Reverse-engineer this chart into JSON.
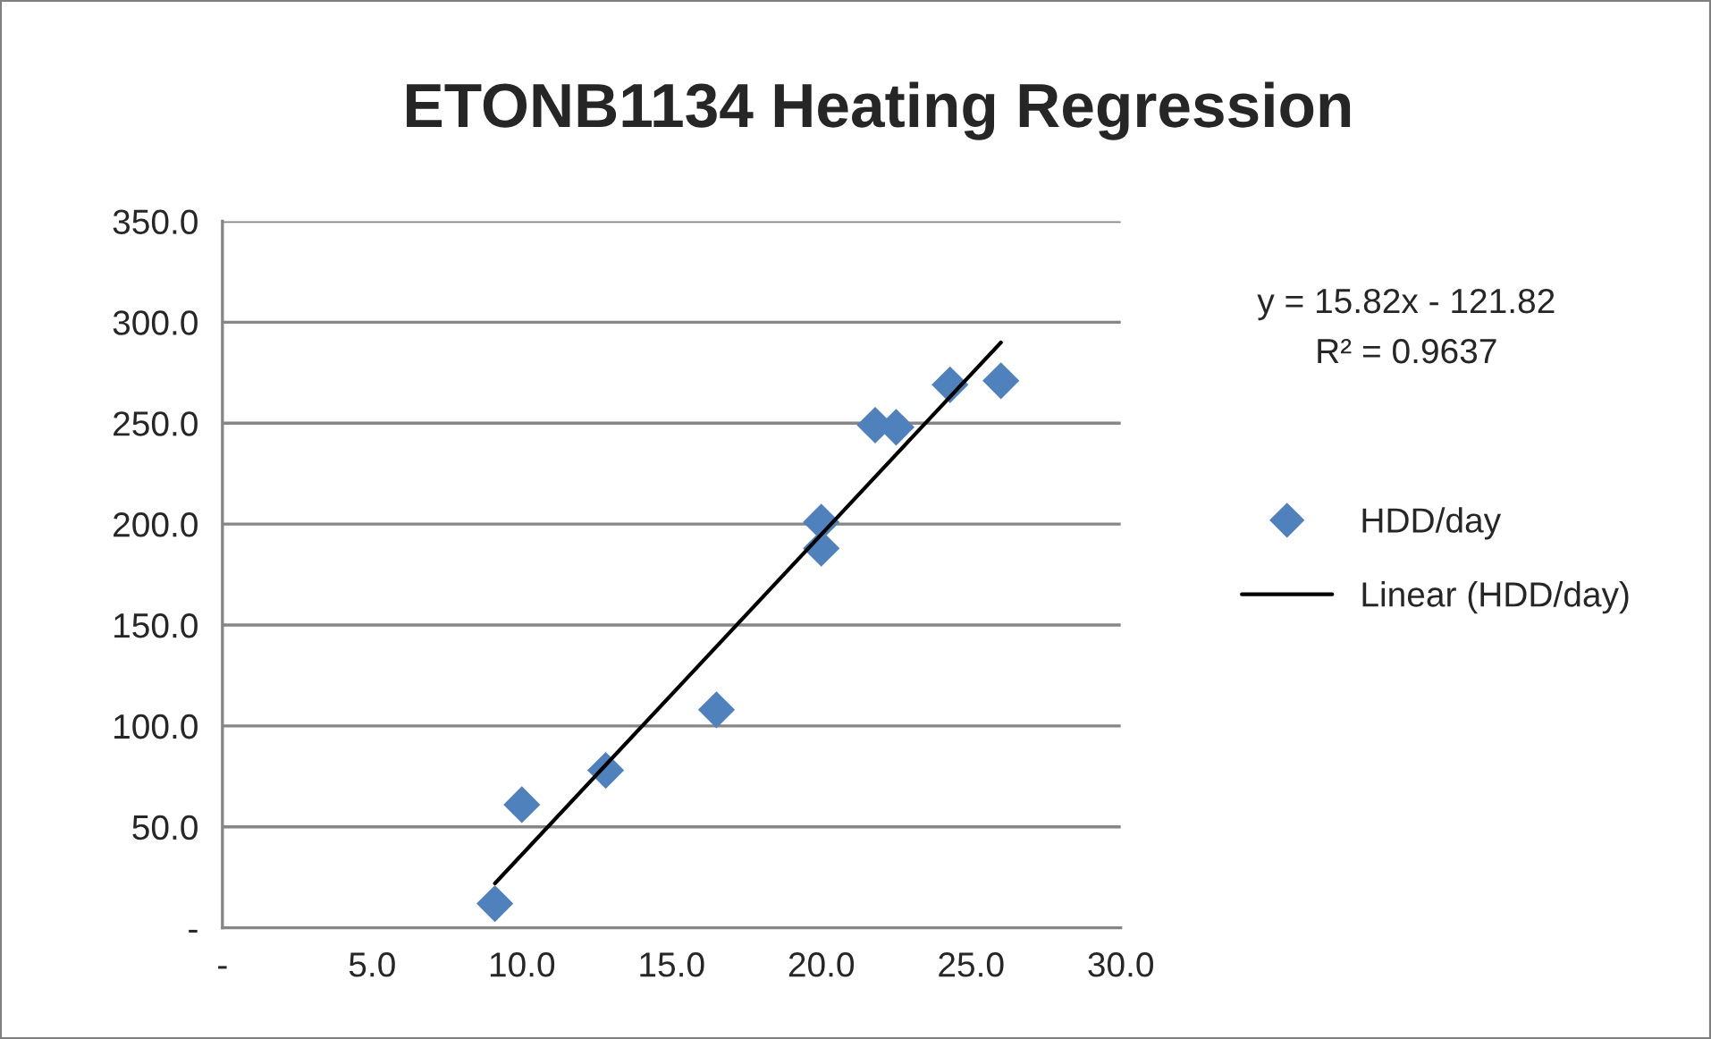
{
  "chart_data": {
    "type": "scatter",
    "title": "ETONB1134 Heating Regression",
    "series": [
      {
        "name": "HDD/day",
        "color": "#4f81bd",
        "marker": "diamond",
        "x": [
          9.1,
          10.0,
          12.8,
          16.5,
          20.0,
          20.0,
          21.8,
          22.5,
          24.3,
          26.0
        ],
        "values": [
          12,
          61,
          78,
          108,
          201,
          188,
          249,
          248,
          269,
          271
        ]
      },
      {
        "name": "Linear (HDD/day)",
        "type": "line",
        "color": "#000000",
        "marker": "none",
        "line_style": "solid",
        "x": [
          9.1,
          26.0
        ],
        "values": [
          22,
          290
        ]
      }
    ],
    "xlim": [
      0,
      30
    ],
    "ylim": [
      0,
      350
    ],
    "xticks": [
      {
        "value": 0,
        "label": "-"
      },
      {
        "value": 5,
        "label": "5.0"
      },
      {
        "value": 10,
        "label": "10.0"
      },
      {
        "value": 15,
        "label": "15.0"
      },
      {
        "value": 20,
        "label": "20.0"
      },
      {
        "value": 25,
        "label": "25.0"
      },
      {
        "value": 30,
        "label": "30.0"
      }
    ],
    "yticks": [
      {
        "value": 0,
        "label": "-"
      },
      {
        "value": 50,
        "label": "50.0"
      },
      {
        "value": 100,
        "label": "100.0"
      },
      {
        "value": 150,
        "label": "150.0"
      },
      {
        "value": 200,
        "label": "200.0"
      },
      {
        "value": 250,
        "label": "250.0"
      },
      {
        "value": 300,
        "label": "300.0"
      },
      {
        "value": 350,
        "label": "350.0"
      }
    ],
    "grid": "y",
    "legend": "right",
    "annotations": [
      "y = 15.82x - 121.82",
      "R² = 0.9637"
    ]
  }
}
